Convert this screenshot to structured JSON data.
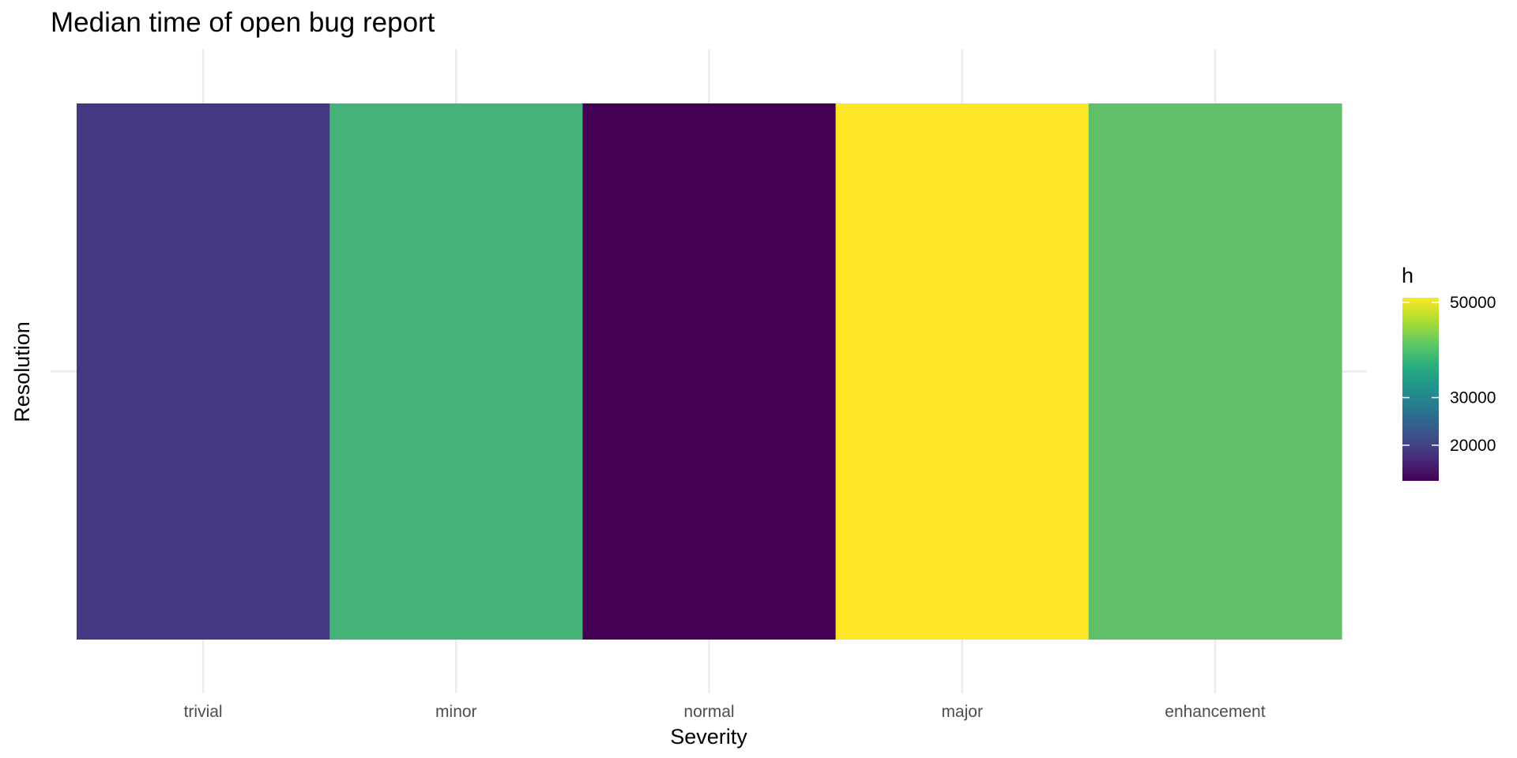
{
  "chart_data": {
    "type": "heatmap",
    "title": "Median time of open bug report",
    "xlabel": "Severity",
    "ylabel": "Resolution",
    "categories": [
      "trivial",
      "minor",
      "normal",
      "major",
      "enhancement"
    ],
    "y_categories": [
      ""
    ],
    "values": [
      17000,
      34000,
      12500,
      51000,
      38000
    ],
    "colors": [
      "#453781",
      "#44B47A",
      "#440154",
      "#FDE725",
      "#60C068"
    ],
    "legend": {
      "title": "h",
      "ticks": [
        20000,
        30000,
        50000
      ],
      "tick_labels": [
        "20000",
        "30000",
        "50000"
      ],
      "range": [
        12500,
        51000
      ],
      "palette": "viridis",
      "position": "right"
    },
    "grid": true
  }
}
